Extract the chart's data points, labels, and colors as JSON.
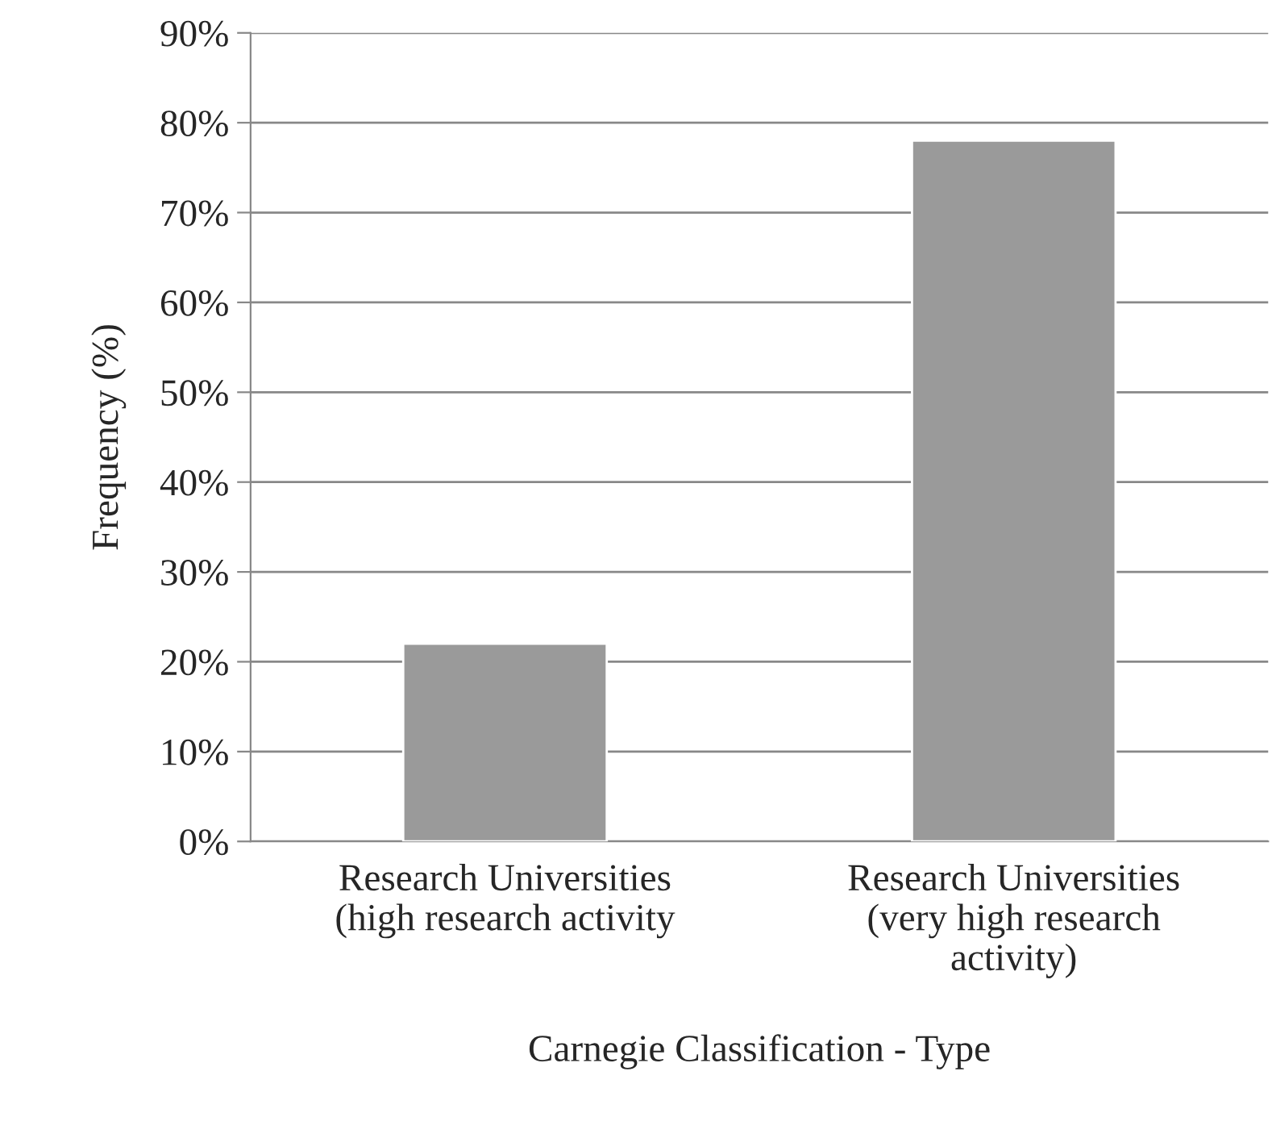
{
  "chart_data": {
    "type": "bar",
    "xlabel": "Carnegie Classification - Type",
    "ylabel": "Frequency (%)",
    "categories": [
      "Research Universities\n(high research activity",
      "Research Universities\n(very high research\nactivity)"
    ],
    "values": [
      22,
      78
    ],
    "color": "#9a9a9a",
    "ylim": [
      0,
      90
    ],
    "yticks": [
      {
        "value": 0,
        "label": "0%"
      },
      {
        "value": 10,
        "label": "10%"
      },
      {
        "value": 20,
        "label": "20%"
      },
      {
        "value": 30,
        "label": "30%"
      },
      {
        "value": 40,
        "label": "40%"
      },
      {
        "value": 50,
        "label": "50%"
      },
      {
        "value": 60,
        "label": "60%"
      },
      {
        "value": 70,
        "label": "70%"
      },
      {
        "value": 80,
        "label": "80%"
      },
      {
        "value": 90,
        "label": "90%"
      }
    ],
    "grid": "y",
    "legend": false
  }
}
